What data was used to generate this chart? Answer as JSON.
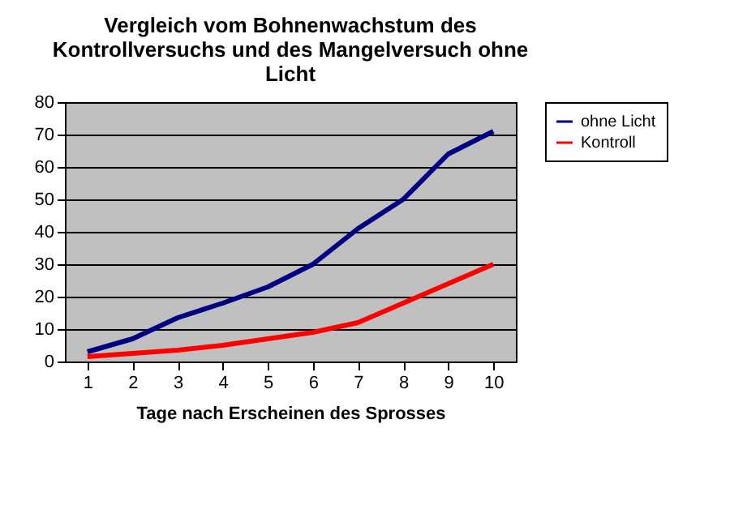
{
  "chart_data": {
    "type": "line",
    "title": "Vergleich vom Bohnenwachstum des Kontrollversuchs und des Mangelversuch ohne Licht",
    "xlabel": "Tage nach Erscheinen des Sprosses",
    "categories": [
      "1",
      "2",
      "3",
      "4",
      "5",
      "6",
      "7",
      "8",
      "9",
      "10"
    ],
    "series": [
      {
        "name": "ohne Licht",
        "color": "#000080",
        "values": [
          3,
          7,
          13.5,
          18,
          23,
          30,
          41,
          50,
          64,
          71
        ]
      },
      {
        "name": "Kontroll",
        "color": "#ff0000",
        "values": [
          1.5,
          2.5,
          3.5,
          5,
          7,
          9,
          12,
          18,
          24,
          30
        ]
      }
    ],
    "ylim": [
      0,
      80
    ],
    "yticks": [
      0,
      10,
      20,
      30,
      40,
      50,
      60,
      70,
      80
    ],
    "grid": "y",
    "legend": "right",
    "marker": "none",
    "line_style": "solid"
  }
}
